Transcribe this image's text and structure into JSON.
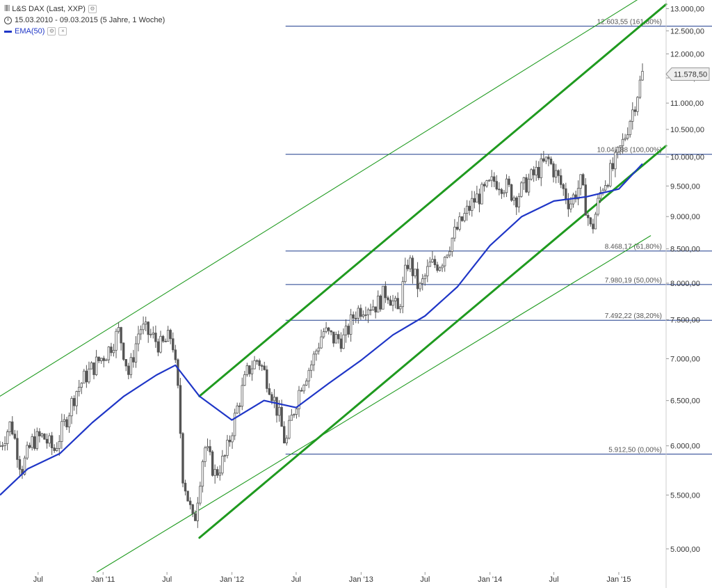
{
  "legend": {
    "instrument": "L&S DAX (Last, XXP)",
    "period": "15.03.2010 - 09.03.2015 (5 Jahre, 1 Woche)",
    "indicator": "EMA(50)"
  },
  "colors": {
    "candles": "#555555",
    "ema": "#1f36c7",
    "fib": "#1b3a8c",
    "channel": "#1f9a1f",
    "price_tag": "#eeeeee"
  },
  "chart_data": {
    "type": "line",
    "scale": "log",
    "ylim": [
      4800,
      13200
    ],
    "x_range": [
      "2010-03-15",
      "2015-05-15"
    ],
    "x_ticks": [
      {
        "date": "2010-07-01",
        "label": "Jul"
      },
      {
        "date": "2011-01-01",
        "label": "Jan '11"
      },
      {
        "date": "2011-07-01",
        "label": "Jul"
      },
      {
        "date": "2012-01-01",
        "label": "Jan '12"
      },
      {
        "date": "2012-07-01",
        "label": "Jul"
      },
      {
        "date": "2013-01-01",
        "label": "Jan '13"
      },
      {
        "date": "2013-07-01",
        "label": "Jul"
      },
      {
        "date": "2014-01-01",
        "label": "Jan '14"
      },
      {
        "date": "2014-07-01",
        "label": "Jul"
      },
      {
        "date": "2015-01-01",
        "label": "Jan '15"
      }
    ],
    "y_ticks": [
      {
        "value": 5000,
        "label": "5.000,00"
      },
      {
        "value": 5500,
        "label": "5.500,00"
      },
      {
        "value": 6000,
        "label": "6.000,00"
      },
      {
        "value": 6500,
        "label": "6.500,00"
      },
      {
        "value": 7000,
        "label": "7.000,00"
      },
      {
        "value": 7500,
        "label": "7.500,00"
      },
      {
        "value": 8000,
        "label": "8.000,00"
      },
      {
        "value": 8500,
        "label": "8.500,00"
      },
      {
        "value": 9000,
        "label": "9.000,00"
      },
      {
        "value": 9500,
        "label": "9.500,00"
      },
      {
        "value": 10000,
        "label": "10.000,00"
      },
      {
        "value": 10500,
        "label": "10.500,00"
      },
      {
        "value": 11000,
        "label": "11.000,00"
      },
      {
        "value": 11500,
        "label": "11.500,00"
      },
      {
        "value": 12000,
        "label": "12.000,00"
      },
      {
        "value": 12500,
        "label": "12.500,00"
      },
      {
        "value": 13000,
        "label": "13.000,00"
      }
    ],
    "last_price": {
      "value": 11578.5,
      "label": "11.578,50"
    },
    "series": [
      {
        "name": "L&S DAX (Last, XXP)",
        "kind": "candles",
        "points": [
          [
            "2010-03-15",
            6000
          ],
          [
            "2010-04-15",
            6250
          ],
          [
            "2010-05-15",
            5750
          ],
          [
            "2010-06-15",
            6050
          ],
          [
            "2010-07-15",
            6100
          ],
          [
            "2010-08-15",
            5950
          ],
          [
            "2010-09-15",
            6250
          ],
          [
            "2010-10-15",
            6600
          ],
          [
            "2010-11-15",
            6800
          ],
          [
            "2010-12-15",
            6950
          ],
          [
            "2011-01-15",
            7100
          ],
          [
            "2011-02-15",
            7350
          ],
          [
            "2011-03-15",
            6800
          ],
          [
            "2011-04-15",
            7400
          ],
          [
            "2011-05-15",
            7300
          ],
          [
            "2011-06-15",
            7150
          ],
          [
            "2011-07-15",
            7300
          ],
          [
            "2011-08-01",
            6600
          ],
          [
            "2011-08-15",
            5700
          ],
          [
            "2011-09-15",
            5200
          ],
          [
            "2011-10-15",
            6000
          ],
          [
            "2011-11-15",
            5700
          ],
          [
            "2011-12-15",
            5900
          ],
          [
            "2012-01-15",
            6400
          ],
          [
            "2012-02-15",
            6850
          ],
          [
            "2012-03-15",
            7000
          ],
          [
            "2012-04-15",
            6700
          ],
          [
            "2012-05-15",
            6300
          ],
          [
            "2012-06-01",
            6000
          ],
          [
            "2012-06-15",
            6250
          ],
          [
            "2012-07-15",
            6700
          ],
          [
            "2012-08-15",
            6950
          ],
          [
            "2012-09-15",
            7350
          ],
          [
            "2012-10-15",
            7250
          ],
          [
            "2012-11-15",
            7250
          ],
          [
            "2012-12-15",
            7600
          ],
          [
            "2013-01-15",
            7700
          ],
          [
            "2013-02-15",
            7700
          ],
          [
            "2013-03-15",
            7900
          ],
          [
            "2013-04-15",
            7600
          ],
          [
            "2013-05-15",
            8350
          ],
          [
            "2013-06-15",
            7900
          ],
          [
            "2013-07-15",
            8250
          ],
          [
            "2013-08-15",
            8300
          ],
          [
            "2013-09-15",
            8650
          ],
          [
            "2013-10-15",
            8950
          ],
          [
            "2013-11-15",
            9250
          ],
          [
            "2013-12-15",
            9400
          ],
          [
            "2014-01-15",
            9600
          ],
          [
            "2014-02-15",
            9500
          ],
          [
            "2014-03-15",
            9300
          ],
          [
            "2014-04-15",
            9550
          ],
          [
            "2014-05-15",
            9750
          ],
          [
            "2014-06-15",
            9950
          ],
          [
            "2014-07-15",
            9600
          ],
          [
            "2014-08-15",
            9200
          ],
          [
            "2014-09-15",
            9550
          ],
          [
            "2014-10-15",
            8750
          ],
          [
            "2014-11-15",
            9500
          ],
          [
            "2014-12-15",
            9800
          ],
          [
            "2015-01-15",
            10300
          ],
          [
            "2015-02-15",
            11000
          ],
          [
            "2015-03-09",
            11578.5
          ]
        ]
      },
      {
        "name": "EMA(50)",
        "kind": "line",
        "points": [
          [
            "2010-03-15",
            5500
          ],
          [
            "2010-06-01",
            5760
          ],
          [
            "2010-09-01",
            5920
          ],
          [
            "2010-12-01",
            6250
          ],
          [
            "2011-03-01",
            6550
          ],
          [
            "2011-06-01",
            6800
          ],
          [
            "2011-07-25",
            6920
          ],
          [
            "2011-10-01",
            6550
          ],
          [
            "2012-01-01",
            6280
          ],
          [
            "2012-04-01",
            6500
          ],
          [
            "2012-07-01",
            6420
          ],
          [
            "2012-10-01",
            6700
          ],
          [
            "2013-01-01",
            6980
          ],
          [
            "2013-04-01",
            7300
          ],
          [
            "2013-07-01",
            7550
          ],
          [
            "2013-10-01",
            7950
          ],
          [
            "2014-01-01",
            8550
          ],
          [
            "2014-04-01",
            9000
          ],
          [
            "2014-07-01",
            9250
          ],
          [
            "2014-10-01",
            9320
          ],
          [
            "2015-01-01",
            9450
          ],
          [
            "2015-03-09",
            9880
          ]
        ]
      }
    ],
    "fibonacci_levels": [
      {
        "value": 12603.55,
        "label": "12.603,55 (161,80%)"
      },
      {
        "value": 10047.88,
        "label": "10.047,88 (100,00%)"
      },
      {
        "value": 8468.17,
        "label": "8.468,17 (61,80%)"
      },
      {
        "value": 7980.19,
        "label": "7.980,19 (50,00%)"
      },
      {
        "value": 7492.22,
        "label": "7.492,22 (38,20%)"
      },
      {
        "value": 5912.5,
        "label": "5.912,50 (0,00%)"
      }
    ],
    "fibonacci_start": "2012-06-01",
    "trend_lines": [
      {
        "name": "outer-upper",
        "weight": "thin",
        "from": [
          "2010-03-15",
          6550
        ],
        "to": [
          "2015-03-09",
          13280
        ]
      },
      {
        "name": "channel-upper",
        "weight": "thick",
        "from": [
          "2011-10-01",
          6550
        ],
        "to": [
          "2015-05-15",
          13100
        ]
      },
      {
        "name": "channel-lower",
        "weight": "thick",
        "from": [
          "2011-10-01",
          5100
        ],
        "to": [
          "2015-05-15",
          10200
        ]
      },
      {
        "name": "outer-lower",
        "weight": "thin",
        "from": [
          "2010-12-15",
          4800
        ],
        "to": [
          "2015-04-01",
          8700
        ]
      }
    ]
  }
}
